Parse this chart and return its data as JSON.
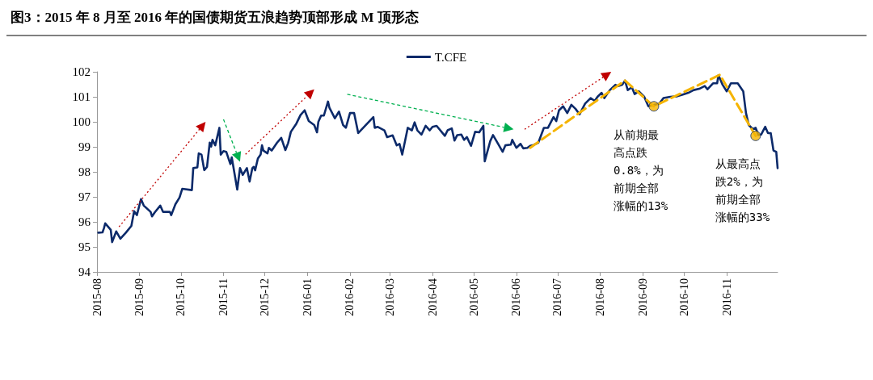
{
  "chart_data": {
    "type": "line",
    "title": "图3：2015 年 8 月至 2016 年的国债期货五浪趋势顶部形成 M 顶形态",
    "legend": "top",
    "grid": false,
    "marker": "none",
    "line_style": "solid",
    "xlim": [
      "2015-08-01",
      "2016-12-08"
    ],
    "xticks": [
      "2015-08",
      "2015-09",
      "2015-10",
      "2015-11",
      "2015-12",
      "2016-01",
      "2016-02",
      "2016-03",
      "2016-04",
      "2016-05",
      "2016-06",
      "2016-07",
      "2016-08",
      "2016-09",
      "2016-10",
      "2016-11"
    ],
    "ylim": [
      94,
      102
    ],
    "yticks": [
      94,
      95,
      96,
      97,
      98,
      99,
      100,
      101,
      102
    ],
    "annotations": [
      {
        "text": "从前期最高点跌0.8%，为前期全部涨幅的13%",
        "x": "2016-09-09",
        "y": 100.62
      },
      {
        "text": "从最高点跌2%，为前期全部涨幅的33%",
        "x": "2016-11-22",
        "y": 99.44
      }
    ],
    "series": [
      {
        "name": "T.CFE",
        "color": "#0c2a6a",
        "x": [
          "2015-08-02",
          "2015-08-05",
          "2015-08-06",
          "2015-08-07",
          "2015-08-11",
          "2015-08-12",
          "2015-08-15",
          "2015-08-18",
          "2015-08-22",
          "2015-08-26",
          "2015-08-28",
          "2015-08-30",
          "2015-09-02",
          "2015-09-04",
          "2015-09-09",
          "2015-09-10",
          "2015-09-12",
          "2015-09-16",
          "2015-09-18",
          "2015-09-23",
          "2015-09-24",
          "2015-09-27",
          "2015-09-30",
          "2015-10-02",
          "2015-10-09",
          "2015-10-10",
          "2015-10-13",
          "2015-10-14",
          "2015-10-16",
          "2015-10-18",
          "2015-10-20",
          "2015-10-22",
          "2015-10-23",
          "2015-10-24",
          "2015-10-26",
          "2015-10-29",
          "2015-10-30",
          "2015-11-01",
          "2015-11-03",
          "2015-11-06",
          "2015-11-07",
          "2015-11-11",
          "2015-11-13",
          "2015-11-15",
          "2015-11-18",
          "2015-11-20",
          "2015-11-22",
          "2015-11-23",
          "2015-11-24",
          "2015-11-26",
          "2015-11-28",
          "2015-11-29",
          "2015-11-30",
          "2015-12-03",
          "2015-12-04",
          "2015-12-06",
          "2015-12-10",
          "2015-12-13",
          "2015-12-16",
          "2015-12-18",
          "2015-12-20",
          "2015-12-24",
          "2015-12-27",
          "2015-12-30",
          "2016-01-02",
          "2016-01-06",
          "2016-01-08",
          "2016-01-09",
          "2016-01-11",
          "2016-01-13",
          "2016-01-16",
          "2016-01-17",
          "2016-01-21",
          "2016-01-24",
          "2016-01-27",
          "2016-01-29",
          "2016-02-01",
          "2016-02-04",
          "2016-02-07",
          "2016-02-18",
          "2016-02-19",
          "2016-02-21",
          "2016-02-26",
          "2016-02-28",
          "2016-03-03",
          "2016-03-06",
          "2016-03-08",
          "2016-03-10",
          "2016-03-14",
          "2016-03-17",
          "2016-03-19",
          "2016-03-21",
          "2016-03-24",
          "2016-03-27",
          "2016-03-30",
          "2016-04-01",
          "2016-04-04",
          "2016-04-10",
          "2016-04-12",
          "2016-04-15",
          "2016-04-17",
          "2016-04-19",
          "2016-04-22",
          "2016-04-24",
          "2016-04-26",
          "2016-04-29",
          "2016-05-02",
          "2016-05-05",
          "2016-05-08",
          "2016-05-09",
          "2016-05-13",
          "2016-05-15",
          "2016-05-19",
          "2016-05-22",
          "2016-05-24",
          "2016-05-28",
          "2016-05-29",
          "2016-06-01",
          "2016-06-04",
          "2016-06-06",
          "2016-06-09",
          "2016-06-11",
          "2016-06-13",
          "2016-06-17",
          "2016-06-21",
          "2016-06-24",
          "2016-06-28",
          "2016-06-30",
          "2016-07-02",
          "2016-07-05",
          "2016-07-08",
          "2016-07-11",
          "2016-07-14",
          "2016-07-17",
          "2016-07-21",
          "2016-07-25",
          "2016-07-28",
          "2016-07-30",
          "2016-08-02",
          "2016-08-04",
          "2016-08-08",
          "2016-08-12",
          "2016-08-14",
          "2016-08-17",
          "2016-08-19",
          "2016-08-21",
          "2016-08-24",
          "2016-08-26",
          "2016-08-29",
          "2016-09-02",
          "2016-09-05",
          "2016-09-09",
          "2016-09-13",
          "2016-09-16",
          "2016-09-21",
          "2016-09-26",
          "2016-09-30",
          "2016-10-04",
          "2016-10-08",
          "2016-10-12",
          "2016-10-16",
          "2016-10-18",
          "2016-10-22",
          "2016-10-25",
          "2016-10-26",
          "2016-10-29",
          "2016-11-01",
          "2016-11-04",
          "2016-11-09",
          "2016-11-13",
          "2016-11-15",
          "2016-11-17",
          "2016-11-20",
          "2016-11-22",
          "2016-11-24",
          "2016-11-26",
          "2016-11-29",
          "2016-12-01",
          "2016-12-03",
          "2016-12-05",
          "2016-12-07",
          "2016-12-08"
        ],
        "values": [
          95.57,
          95.58,
          95.74,
          95.94,
          95.68,
          95.19,
          95.62,
          95.33,
          95.57,
          95.84,
          96.43,
          96.27,
          96.91,
          96.65,
          96.4,
          96.22,
          96.38,
          96.65,
          96.4,
          96.4,
          96.27,
          96.7,
          96.97,
          97.32,
          97.27,
          98.15,
          98.18,
          98.74,
          98.69,
          98.07,
          98.2,
          99.17,
          99.01,
          99.28,
          99.06,
          99.76,
          98.69,
          98.83,
          98.8,
          98.31,
          98.58,
          97.29,
          98.15,
          97.88,
          98.15,
          97.61,
          98.15,
          98.2,
          98.06,
          98.53,
          98.69,
          99.06,
          98.85,
          98.74,
          98.96,
          98.85,
          99.17,
          99.36,
          98.87,
          99.15,
          99.6,
          99.93,
          100.27,
          100.46,
          100.03,
          99.87,
          99.58,
          100.0,
          100.25,
          100.25,
          100.81,
          100.57,
          100.14,
          100.41,
          99.87,
          99.76,
          100.35,
          100.35,
          99.55,
          100.19,
          99.76,
          99.8,
          99.66,
          99.39,
          99.46,
          99.06,
          99.12,
          98.69,
          99.76,
          99.66,
          99.98,
          99.66,
          99.49,
          99.84,
          99.66,
          99.8,
          99.84,
          99.44,
          99.66,
          99.74,
          99.25,
          99.47,
          99.49,
          99.28,
          99.39,
          99.04,
          99.6,
          99.58,
          99.84,
          98.42,
          99.23,
          99.47,
          99.09,
          98.8,
          99.06,
          99.09,
          99.28,
          98.96,
          99.12,
          98.94,
          98.96,
          99.04,
          99.06,
          99.17,
          99.76,
          99.76,
          100.19,
          100.03,
          100.46,
          100.62,
          100.35,
          100.68,
          100.52,
          100.3,
          100.73,
          100.95,
          100.84,
          101.0,
          101.16,
          100.95,
          101.27,
          101.48,
          101.43,
          101.48,
          101.65,
          101.27,
          101.38,
          101.11,
          101.22,
          101.0,
          100.62,
          100.68,
          100.73,
          100.95,
          101.0,
          101.02,
          101.09,
          101.16,
          101.27,
          101.32,
          101.43,
          101.3,
          101.54,
          101.54,
          101.86,
          101.48,
          101.22,
          101.54,
          101.54,
          101.22,
          100.35,
          99.87,
          99.71,
          99.76,
          99.47,
          99.49,
          99.8,
          99.55,
          99.55,
          98.85,
          98.8,
          98.15
        ]
      },
      {
        "type": "line",
        "color": "#f5b400",
        "line_style": "dashed",
        "marker": "none",
        "x": [
          "2016-06-11",
          "2016-08-19",
          "2016-09-09",
          "2016-10-27",
          "2016-11-22"
        ],
        "values": [
          98.96,
          101.65,
          100.62,
          101.88,
          99.44
        ]
      },
      {
        "type": "scatter",
        "color": "#f5b400",
        "marker": "circle",
        "x": [
          "2016-09-09",
          "2016-11-22"
        ],
        "values": [
          100.62,
          99.44
        ]
      }
    ]
  }
}
